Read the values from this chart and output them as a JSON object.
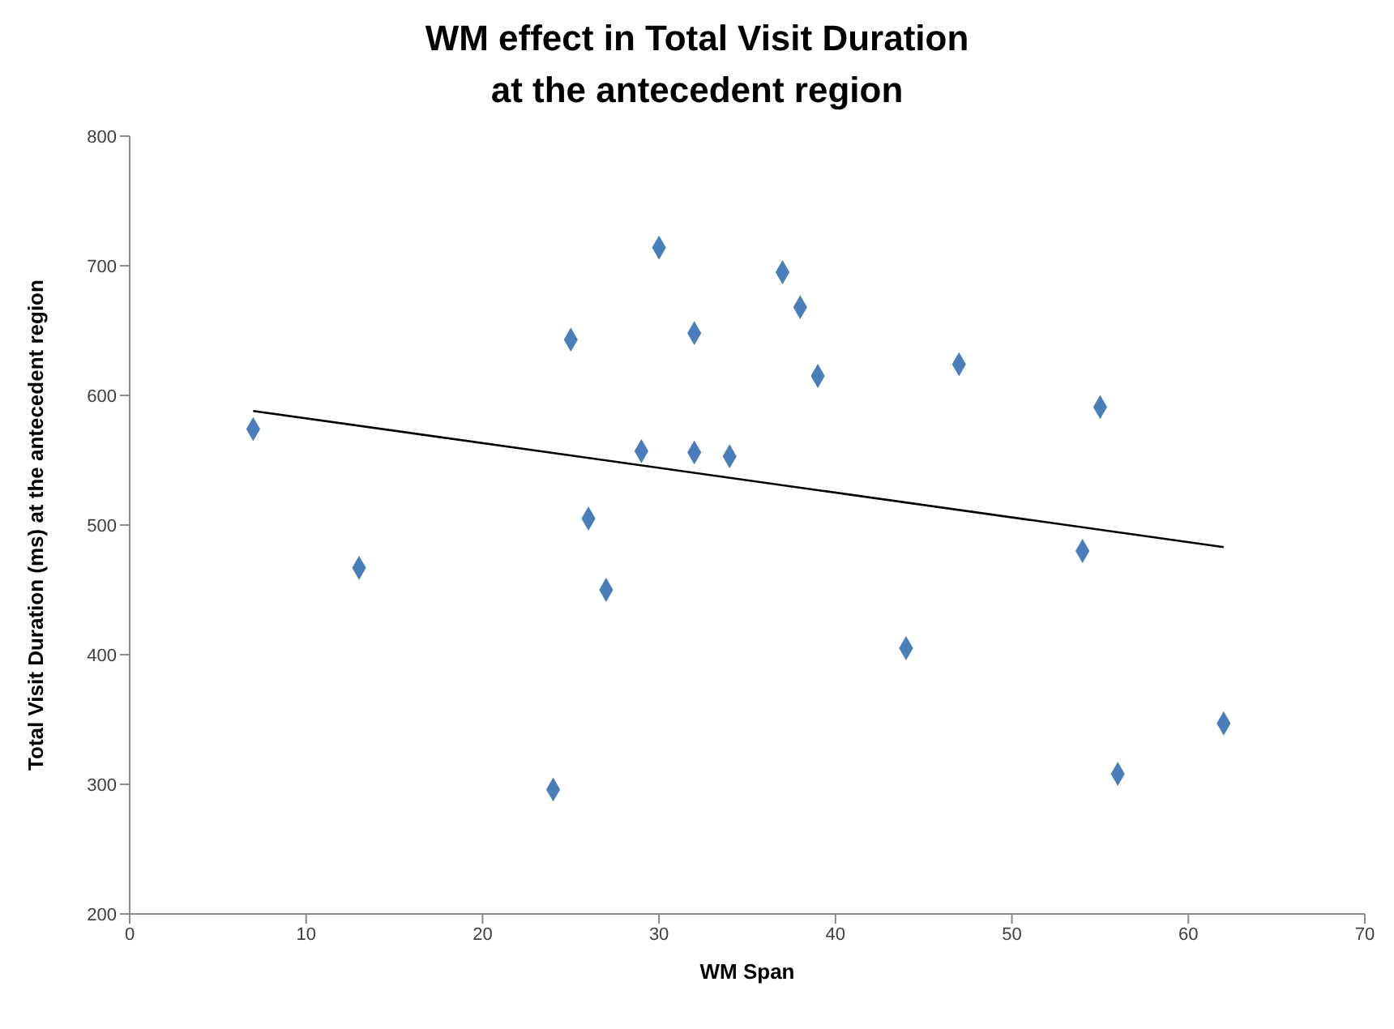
{
  "chart_data": {
    "type": "scatter",
    "title": "WM effect in Total Visit Duration\nat the antecedent region",
    "xlabel": "WM Span",
    "ylabel": "Total Visit Duration (ms) at the antecedent region",
    "xlim": [
      0,
      70
    ],
    "xticks": [
      0,
      10,
      20,
      30,
      40,
      50,
      60,
      70
    ],
    "ylim": [
      200,
      800
    ],
    "yticks": [
      200,
      300,
      400,
      500,
      600,
      700,
      800
    ],
    "grid": false,
    "legend": false,
    "marker": "diamond",
    "series": [
      {
        "color": "#4a7ebb",
        "x": [
          7,
          13,
          24,
          25,
          26,
          27,
          29,
          30,
          32,
          32,
          34,
          37,
          38,
          39,
          44,
          47,
          54,
          55,
          56,
          62
        ],
        "values": [
          574,
          467,
          296,
          643,
          505,
          450,
          557,
          714,
          648,
          556,
          553,
          695,
          668,
          615,
          405,
          624,
          480,
          591,
          308,
          347
        ]
      },
      {
        "type": "line",
        "color": "#000000",
        "marker": "none",
        "x": [
          7,
          62
        ],
        "values": [
          588,
          483
        ]
      }
    ]
  }
}
